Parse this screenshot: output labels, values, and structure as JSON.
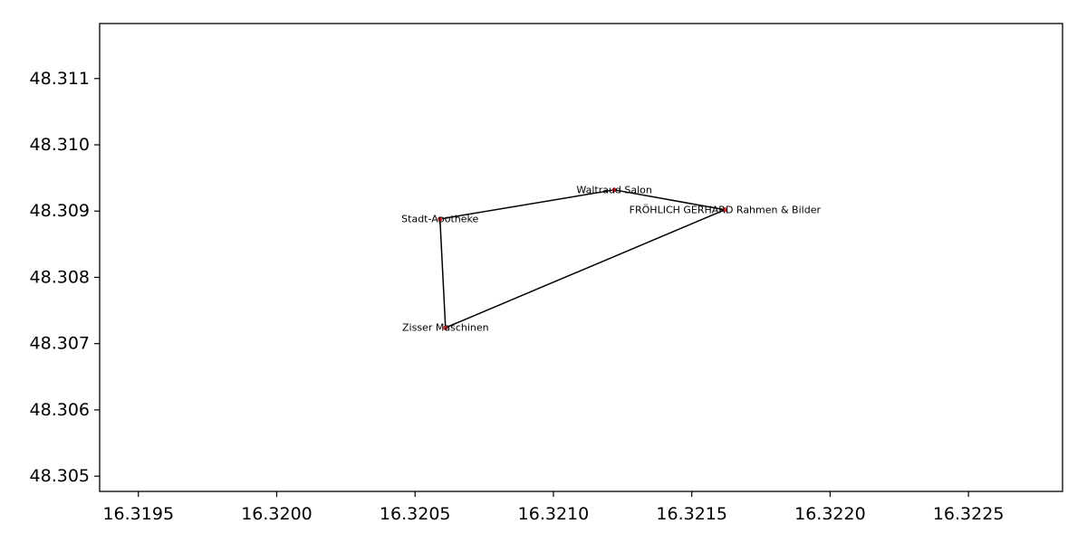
{
  "chart_data": {
    "type": "scatter",
    "title": "",
    "xlabel": "",
    "ylabel": "",
    "xlim": [
      16.31936,
      16.32284
    ],
    "ylim": [
      48.30477,
      48.31183
    ],
    "grid": false,
    "x_ticks": [
      "16.3195",
      "16.3200",
      "16.3205",
      "16.3210",
      "16.3215",
      "16.3220",
      "16.3225"
    ],
    "y_ticks": [
      "48.305",
      "48.306",
      "48.307",
      "48.308",
      "48.309",
      "48.310",
      "48.311"
    ],
    "points": [
      {
        "name": "Waltraud Salon",
        "x": 16.32122,
        "y": 48.30932
      },
      {
        "name": "FRÖHLICH GERHARD Rahmen & Bilder",
        "x": 16.32162,
        "y": 48.30902
      },
      {
        "name": "Stadt-Apotheke",
        "x": 16.32059,
        "y": 48.30888
      },
      {
        "name": "Zisser Maschinen",
        "x": 16.32061,
        "y": 48.30724
      }
    ],
    "route": [
      "Stadt-Apotheke",
      "Waltraud Salon",
      "FRÖHLICH GERHARD Rahmen & Bilder",
      "Zisser Maschinen",
      "Stadt-Apotheke"
    ],
    "colors": {
      "point": "#d62728",
      "line": "#000000",
      "axes": "#000000"
    }
  }
}
